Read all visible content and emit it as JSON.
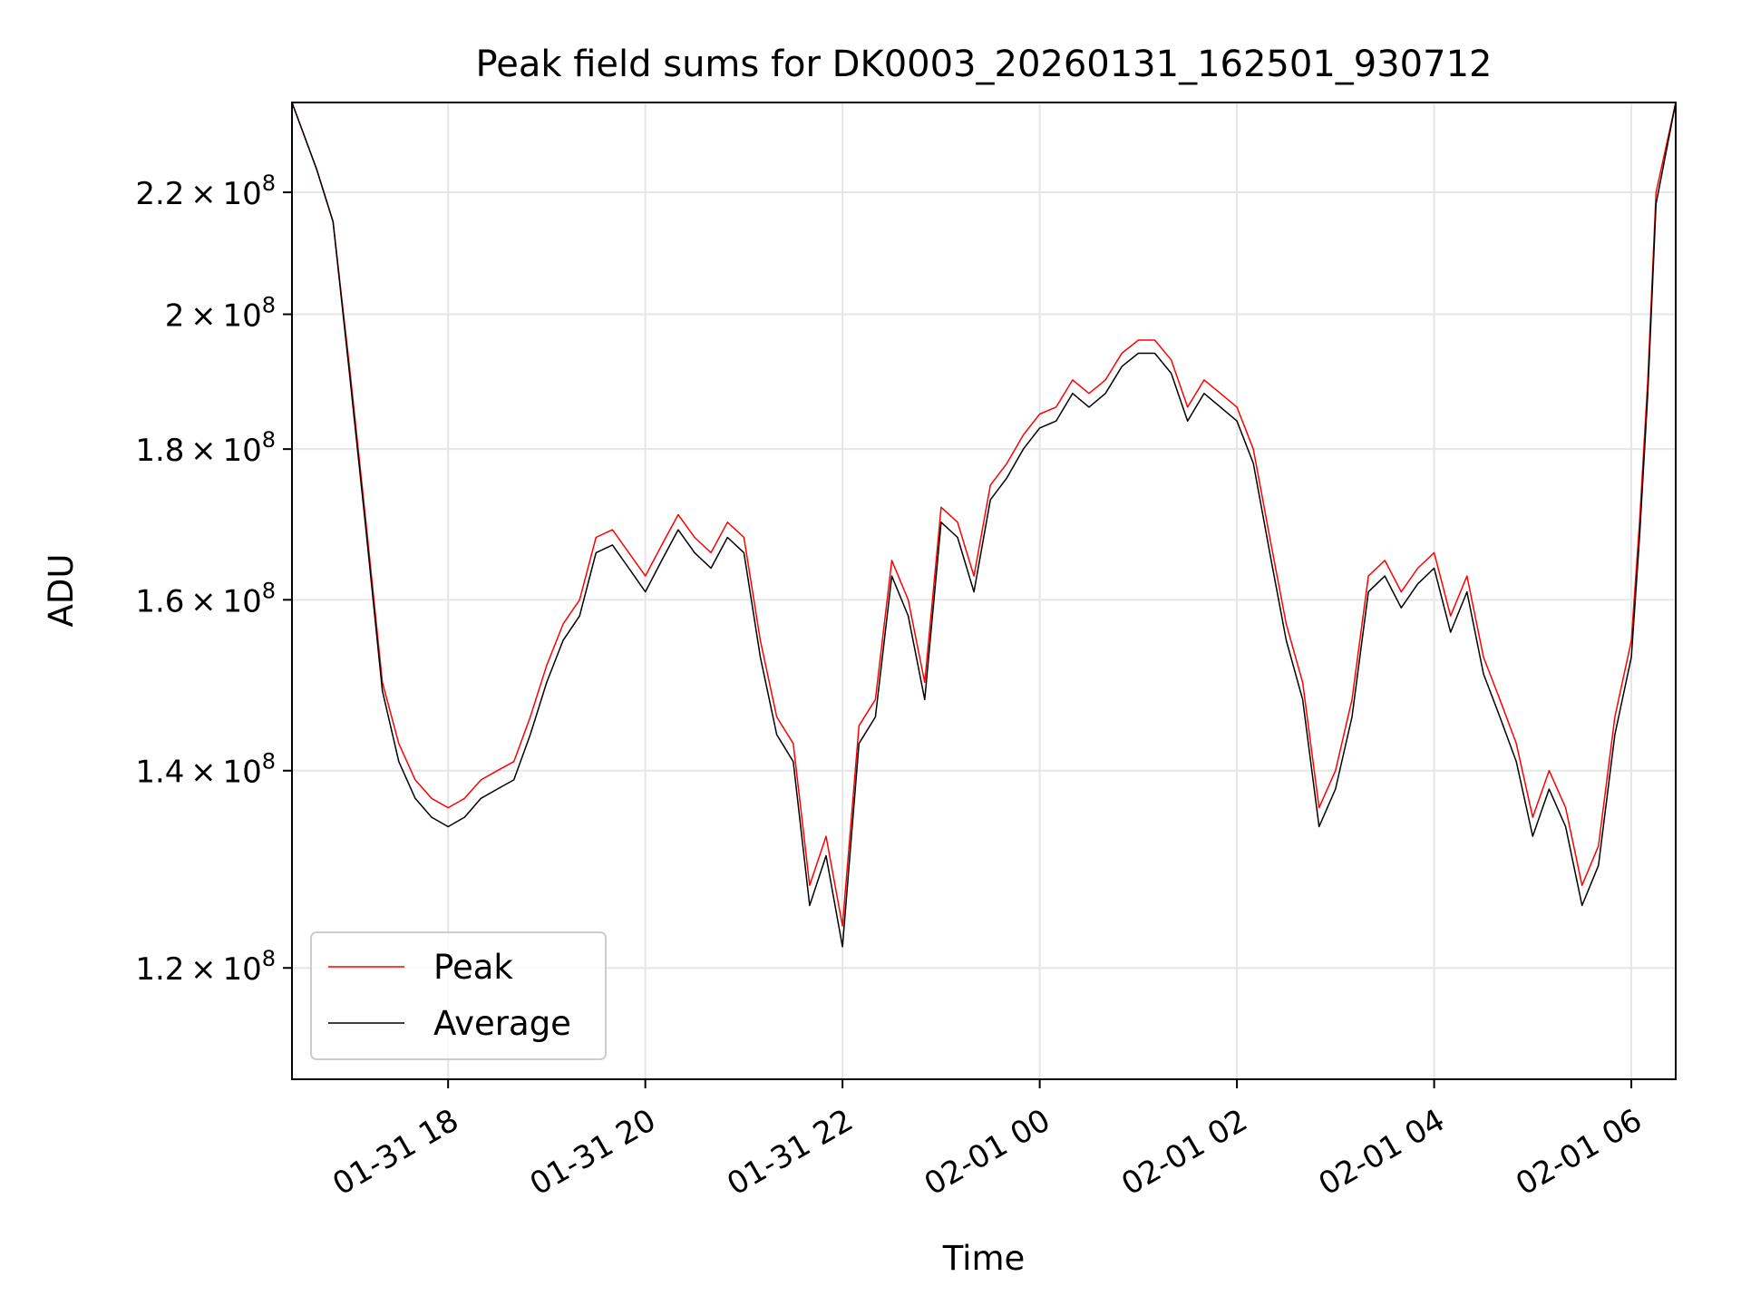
{
  "chart_data": {
    "type": "line",
    "title": "Peak field sums for DK0003_20260131_162501_930712",
    "xlabel": "Time",
    "ylabel": "ADU",
    "y_scale": "log",
    "ylim": [
      110000000,
      236000000
    ],
    "xlim": [
      "2026-01-31 16:25",
      "2026-02-01 06:27"
    ],
    "grid": true,
    "legend_position": "lower-left",
    "x_ticks": [
      {
        "t": "2026-01-31 18:00",
        "label": "01-31 18"
      },
      {
        "t": "2026-01-31 20:00",
        "label": "01-31 20"
      },
      {
        "t": "2026-01-31 22:00",
        "label": "01-31 22"
      },
      {
        "t": "2026-02-01 00:00",
        "label": "02-01 00"
      },
      {
        "t": "2026-02-01 02:00",
        "label": "02-01 02"
      },
      {
        "t": "2026-02-01 04:00",
        "label": "02-01 04"
      },
      {
        "t": "2026-02-01 06:00",
        "label": "02-01 06"
      }
    ],
    "y_ticks": [
      {
        "v": 120000000,
        "mant": "1.2",
        "exp": "8"
      },
      {
        "v": 140000000,
        "mant": "1.4",
        "exp": "8"
      },
      {
        "v": 160000000,
        "mant": "1.6",
        "exp": "8"
      },
      {
        "v": 180000000,
        "mant": "1.8",
        "exp": "8"
      },
      {
        "v": 200000000,
        "mant": "2",
        "exp": "8"
      },
      {
        "v": 220000000,
        "mant": "2.2",
        "exp": "8"
      }
    ],
    "series": [
      {
        "name": "Peak",
        "color": "#ff0000",
        "points": [
          [
            "2026-01-31 16:25",
            236000000
          ],
          [
            "2026-01-31 16:40",
            224000000
          ],
          [
            "2026-01-31 16:50",
            215000000
          ],
          [
            "2026-01-31 17:00",
            192000000
          ],
          [
            "2026-01-31 17:10",
            170000000
          ],
          [
            "2026-01-31 17:20",
            150000000
          ],
          [
            "2026-01-31 17:30",
            143000000
          ],
          [
            "2026-01-31 17:40",
            139000000
          ],
          [
            "2026-01-31 17:50",
            137000000
          ],
          [
            "2026-01-31 18:00",
            136000000
          ],
          [
            "2026-01-31 18:10",
            137000000
          ],
          [
            "2026-01-31 18:20",
            139000000
          ],
          [
            "2026-01-31 18:30",
            140000000
          ],
          [
            "2026-01-31 18:40",
            141000000
          ],
          [
            "2026-01-31 18:50",
            146000000
          ],
          [
            "2026-01-31 19:00",
            152000000
          ],
          [
            "2026-01-31 19:10",
            157000000
          ],
          [
            "2026-01-31 19:20",
            160000000
          ],
          [
            "2026-01-31 19:30",
            168000000
          ],
          [
            "2026-01-31 19:40",
            169000000
          ],
          [
            "2026-01-31 19:50",
            166000000
          ],
          [
            "2026-01-31 20:00",
            163000000
          ],
          [
            "2026-01-31 20:10",
            167000000
          ],
          [
            "2026-01-31 20:20",
            171000000
          ],
          [
            "2026-01-31 20:30",
            168000000
          ],
          [
            "2026-01-31 20:40",
            166000000
          ],
          [
            "2026-01-31 20:50",
            170000000
          ],
          [
            "2026-01-31 21:00",
            168000000
          ],
          [
            "2026-01-31 21:10",
            155000000
          ],
          [
            "2026-01-31 21:20",
            146000000
          ],
          [
            "2026-01-31 21:30",
            143000000
          ],
          [
            "2026-01-31 21:40",
            128000000
          ],
          [
            "2026-01-31 21:50",
            133000000
          ],
          [
            "2026-01-31 22:00",
            124000000
          ],
          [
            "2026-01-31 22:10",
            145000000
          ],
          [
            "2026-01-31 22:20",
            148000000
          ],
          [
            "2026-01-31 22:30",
            165000000
          ],
          [
            "2026-01-31 22:40",
            160000000
          ],
          [
            "2026-01-31 22:50",
            150000000
          ],
          [
            "2026-01-31 23:00",
            172000000
          ],
          [
            "2026-01-31 23:10",
            170000000
          ],
          [
            "2026-01-31 23:20",
            163000000
          ],
          [
            "2026-01-31 23:30",
            175000000
          ],
          [
            "2026-01-31 23:40",
            178000000
          ],
          [
            "2026-01-31 23:50",
            182000000
          ],
          [
            "2026-02-01 00:00",
            185000000
          ],
          [
            "2026-02-01 00:10",
            186000000
          ],
          [
            "2026-02-01 00:20",
            190000000
          ],
          [
            "2026-02-01 00:30",
            188000000
          ],
          [
            "2026-02-01 00:40",
            190000000
          ],
          [
            "2026-02-01 00:50",
            194000000
          ],
          [
            "2026-02-01 01:00",
            196000000
          ],
          [
            "2026-02-01 01:10",
            196000000
          ],
          [
            "2026-02-01 01:20",
            193000000
          ],
          [
            "2026-02-01 01:30",
            186000000
          ],
          [
            "2026-02-01 01:40",
            190000000
          ],
          [
            "2026-02-01 01:50",
            188000000
          ],
          [
            "2026-02-01 02:00",
            186000000
          ],
          [
            "2026-02-01 02:10",
            180000000
          ],
          [
            "2026-02-01 02:20",
            168000000
          ],
          [
            "2026-02-01 02:30",
            157000000
          ],
          [
            "2026-02-01 02:40",
            150000000
          ],
          [
            "2026-02-01 02:50",
            136000000
          ],
          [
            "2026-02-01 03:00",
            140000000
          ],
          [
            "2026-02-01 03:10",
            148000000
          ],
          [
            "2026-02-01 03:20",
            163000000
          ],
          [
            "2026-02-01 03:30",
            165000000
          ],
          [
            "2026-02-01 03:40",
            161000000
          ],
          [
            "2026-02-01 03:50",
            164000000
          ],
          [
            "2026-02-01 04:00",
            166000000
          ],
          [
            "2026-02-01 04:10",
            158000000
          ],
          [
            "2026-02-01 04:20",
            163000000
          ],
          [
            "2026-02-01 04:30",
            153000000
          ],
          [
            "2026-02-01 04:40",
            148000000
          ],
          [
            "2026-02-01 04:50",
            143000000
          ],
          [
            "2026-02-01 05:00",
            135000000
          ],
          [
            "2026-02-01 05:10",
            140000000
          ],
          [
            "2026-02-01 05:20",
            136000000
          ],
          [
            "2026-02-01 05:30",
            128000000
          ],
          [
            "2026-02-01 05:40",
            132000000
          ],
          [
            "2026-02-01 05:50",
            146000000
          ],
          [
            "2026-02-01 06:00",
            155000000
          ],
          [
            "2026-02-01 06:05",
            170000000
          ],
          [
            "2026-02-01 06:10",
            190000000
          ],
          [
            "2026-02-01 06:15",
            220000000
          ],
          [
            "2026-02-01 06:27",
            236000000
          ]
        ]
      },
      {
        "name": "Average",
        "color": "#000000",
        "points": [
          [
            "2026-01-31 16:25",
            236000000
          ],
          [
            "2026-01-31 16:40",
            224000000
          ],
          [
            "2026-01-31 16:50",
            215000000
          ],
          [
            "2026-01-31 17:00",
            191000000
          ],
          [
            "2026-01-31 17:10",
            169000000
          ],
          [
            "2026-01-31 17:20",
            149000000
          ],
          [
            "2026-01-31 17:30",
            141000000
          ],
          [
            "2026-01-31 17:40",
            137000000
          ],
          [
            "2026-01-31 17:50",
            135000000
          ],
          [
            "2026-01-31 18:00",
            134000000
          ],
          [
            "2026-01-31 18:10",
            135000000
          ],
          [
            "2026-01-31 18:20",
            137000000
          ],
          [
            "2026-01-31 18:30",
            138000000
          ],
          [
            "2026-01-31 18:40",
            139000000
          ],
          [
            "2026-01-31 18:50",
            144000000
          ],
          [
            "2026-01-31 19:00",
            150000000
          ],
          [
            "2026-01-31 19:10",
            155000000
          ],
          [
            "2026-01-31 19:20",
            158000000
          ],
          [
            "2026-01-31 19:30",
            166000000
          ],
          [
            "2026-01-31 19:40",
            167000000
          ],
          [
            "2026-01-31 19:50",
            164000000
          ],
          [
            "2026-01-31 20:00",
            161000000
          ],
          [
            "2026-01-31 20:10",
            165000000
          ],
          [
            "2026-01-31 20:20",
            169000000
          ],
          [
            "2026-01-31 20:30",
            166000000
          ],
          [
            "2026-01-31 20:40",
            164000000
          ],
          [
            "2026-01-31 20:50",
            168000000
          ],
          [
            "2026-01-31 21:00",
            166000000
          ],
          [
            "2026-01-31 21:10",
            153000000
          ],
          [
            "2026-01-31 21:20",
            144000000
          ],
          [
            "2026-01-31 21:30",
            141000000
          ],
          [
            "2026-01-31 21:40",
            126000000
          ],
          [
            "2026-01-31 21:50",
            131000000
          ],
          [
            "2026-01-31 22:00",
            122000000
          ],
          [
            "2026-01-31 22:10",
            143000000
          ],
          [
            "2026-01-31 22:20",
            146000000
          ],
          [
            "2026-01-31 22:30",
            163000000
          ],
          [
            "2026-01-31 22:40",
            158000000
          ],
          [
            "2026-01-31 22:50",
            148000000
          ],
          [
            "2026-01-31 23:00",
            170000000
          ],
          [
            "2026-01-31 23:10",
            168000000
          ],
          [
            "2026-01-31 23:20",
            161000000
          ],
          [
            "2026-01-31 23:30",
            173000000
          ],
          [
            "2026-01-31 23:40",
            176000000
          ],
          [
            "2026-01-31 23:50",
            180000000
          ],
          [
            "2026-02-01 00:00",
            183000000
          ],
          [
            "2026-02-01 00:10",
            184000000
          ],
          [
            "2026-02-01 00:20",
            188000000
          ],
          [
            "2026-02-01 00:30",
            186000000
          ],
          [
            "2026-02-01 00:40",
            188000000
          ],
          [
            "2026-02-01 00:50",
            192000000
          ],
          [
            "2026-02-01 01:00",
            194000000
          ],
          [
            "2026-02-01 01:10",
            194000000
          ],
          [
            "2026-02-01 01:20",
            191000000
          ],
          [
            "2026-02-01 01:30",
            184000000
          ],
          [
            "2026-02-01 01:40",
            188000000
          ],
          [
            "2026-02-01 01:50",
            186000000
          ],
          [
            "2026-02-01 02:00",
            184000000
          ],
          [
            "2026-02-01 02:10",
            178000000
          ],
          [
            "2026-02-01 02:20",
            166000000
          ],
          [
            "2026-02-01 02:30",
            155000000
          ],
          [
            "2026-02-01 02:40",
            148000000
          ],
          [
            "2026-02-01 02:50",
            134000000
          ],
          [
            "2026-02-01 03:00",
            138000000
          ],
          [
            "2026-02-01 03:10",
            146000000
          ],
          [
            "2026-02-01 03:20",
            161000000
          ],
          [
            "2026-02-01 03:30",
            163000000
          ],
          [
            "2026-02-01 03:40",
            159000000
          ],
          [
            "2026-02-01 03:50",
            162000000
          ],
          [
            "2026-02-01 04:00",
            164000000
          ],
          [
            "2026-02-01 04:10",
            156000000
          ],
          [
            "2026-02-01 04:20",
            161000000
          ],
          [
            "2026-02-01 04:30",
            151000000
          ],
          [
            "2026-02-01 04:40",
            146000000
          ],
          [
            "2026-02-01 04:50",
            141000000
          ],
          [
            "2026-02-01 05:00",
            133000000
          ],
          [
            "2026-02-01 05:10",
            138000000
          ],
          [
            "2026-02-01 05:20",
            134000000
          ],
          [
            "2026-02-01 05:30",
            126000000
          ],
          [
            "2026-02-01 05:40",
            130000000
          ],
          [
            "2026-02-01 05:50",
            144000000
          ],
          [
            "2026-02-01 06:00",
            153000000
          ],
          [
            "2026-02-01 06:05",
            168000000
          ],
          [
            "2026-02-01 06:10",
            188000000
          ],
          [
            "2026-02-01 06:15",
            218000000
          ],
          [
            "2026-02-01 06:27",
            236000000
          ]
        ]
      }
    ]
  }
}
